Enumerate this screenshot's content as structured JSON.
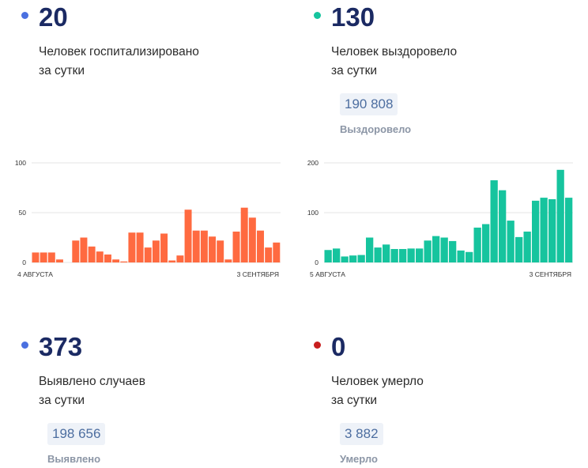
{
  "cards": [
    {
      "value": "20",
      "desc_line1": "Человек госпитализировано",
      "desc_line2": "за сутки",
      "dot_color": "#4a70e0"
    },
    {
      "value": "130",
      "desc_line1": "Человек выздоровело",
      "desc_line2": "за сутки",
      "dot_color": "#16c49e",
      "total": "190 808",
      "total_label": "Выздоровело"
    },
    {
      "value": "373",
      "desc_line1": "Выявлено случаев",
      "desc_line2": "за сутки",
      "dot_color": "#4a70e0",
      "total": "198 656",
      "total_label": "Выявлено"
    },
    {
      "value": "0",
      "desc_line1": "Человек умерло",
      "desc_line2": "за сутки",
      "dot_color": "#c81e1e",
      "total": "3 882",
      "total_label": "Умерло"
    }
  ],
  "chart_data": [
    {
      "type": "bar",
      "color": "#ff6a40",
      "ylim": [
        0,
        100
      ],
      "yticks": [
        "100",
        "50",
        "0"
      ],
      "x_start_label": "4 АВГУСТА",
      "x_end_label": "3 СЕНТЯБРЯ",
      "values": [
        10,
        10,
        10,
        3,
        0,
        22,
        25,
        16,
        11,
        8,
        3,
        1,
        30,
        30,
        15,
        22,
        29,
        2,
        7,
        53,
        32,
        32,
        26,
        22,
        3,
        31,
        55,
        45,
        32,
        15,
        20
      ]
    },
    {
      "type": "bar",
      "color": "#16c49e",
      "ylim": [
        0,
        200
      ],
      "yticks": [
        "200",
        "100",
        "0"
      ],
      "x_start_label": "5 АВГУСТА",
      "x_end_label": "3 СЕНТЯБРЯ",
      "values": [
        25,
        28,
        12,
        14,
        15,
        50,
        30,
        36,
        27,
        27,
        28,
        28,
        44,
        53,
        50,
        43,
        24,
        21,
        70,
        77,
        165,
        145,
        84,
        51,
        62,
        124,
        130,
        127,
        186,
        130
      ]
    }
  ]
}
